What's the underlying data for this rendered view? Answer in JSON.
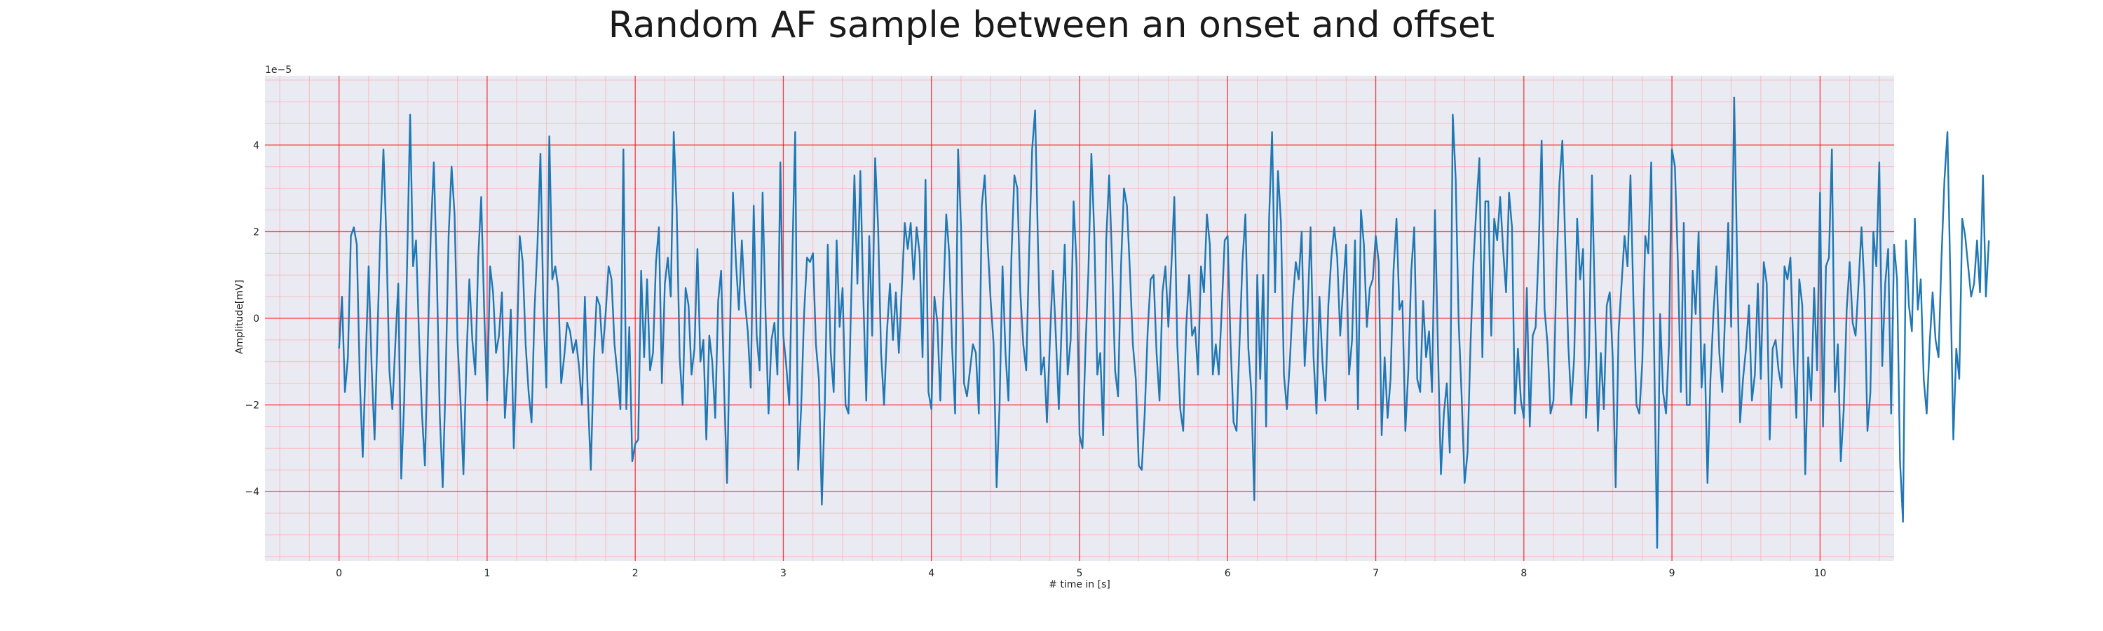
{
  "chart_data": {
    "type": "line",
    "title": "Random AF sample between an onset and offset",
    "xlabel": "# time in [s]",
    "ylabel": "Amplitude[mV]",
    "y_scale_label": "1e−5",
    "xlim": [
      -0.5,
      10.5
    ],
    "ylim": [
      -5.6,
      5.6
    ],
    "x_ticks": [
      0,
      1,
      2,
      3,
      4,
      5,
      6,
      7,
      8,
      9,
      10
    ],
    "x_tick_labels": [
      "0",
      "1",
      "2",
      "3",
      "4",
      "5",
      "6",
      "7",
      "8",
      "9",
      "10"
    ],
    "y_ticks": [
      -4,
      -2,
      0,
      2,
      4
    ],
    "y_tick_labels": [
      "−4",
      "−2",
      "0",
      "2",
      "4"
    ],
    "grid": true,
    "x_start": 0,
    "x_step": 0.02,
    "series": [
      {
        "values": [
          -0.7,
          0.5,
          -1.7,
          -0.9,
          1.9,
          2.1,
          1.7,
          -1.4,
          -3.2,
          -1.0,
          1.2,
          -1.1,
          -2.8,
          -0.3,
          2.1,
          3.9,
          1.8,
          -1.2,
          -2.1,
          -0.6,
          0.8,
          -3.7,
          -1.9,
          1.3,
          4.7,
          1.2,
          1.8,
          -0.4,
          -2.2,
          -3.4,
          -0.5,
          2.0,
          3.6,
          1.1,
          -2.2,
          -3.9,
          -1.4,
          1.9,
          3.5,
          2.4,
          -0.5,
          -1.9,
          -3.6,
          -1.0,
          0.9,
          -0.5,
          -1.3,
          1.4,
          2.8,
          0.2,
          -1.9,
          1.2,
          0.6,
          -0.8,
          -0.4,
          0.6,
          -2.3,
          -1.2,
          0.2,
          -3.0,
          -0.8,
          1.9,
          1.3,
          -0.6,
          -1.7,
          -2.4,
          0.2,
          1.7,
          3.8,
          0.2,
          -1.6,
          4.2,
          0.9,
          1.2,
          0.7,
          -1.5,
          -0.9,
          -0.1,
          -0.3,
          -0.8,
          -0.5,
          -1.1,
          -2.0,
          0.5,
          -1.8,
          -3.5,
          -1.0,
          0.5,
          0.3,
          -0.8,
          0.1,
          1.2,
          0.9,
          -0.6,
          -1.3,
          -2.1,
          3.9,
          -2.1,
          -0.2,
          -3.3,
          -2.9,
          -2.8,
          1.1,
          -0.9,
          0.9,
          -1.2,
          -0.8,
          1.3,
          2.1,
          -1.5,
          0.8,
          1.4,
          0.5,
          4.3,
          2.5,
          -0.9,
          -2.0,
          0.7,
          0.3,
          -1.3,
          -0.7,
          1.6,
          -1.0,
          -0.5,
          -2.8,
          -0.4,
          -1.0,
          -2.3,
          0.4,
          1.1,
          -1.6,
          -3.8,
          -0.3,
          2.9,
          1.3,
          0.2,
          1.8,
          0.4,
          -0.3,
          -1.6,
          2.6,
          -0.4,
          -1.2,
          2.9,
          0.1,
          -2.2,
          -0.5,
          -0.1,
          -1.3,
          3.6,
          -0.4,
          -1.1,
          -2.0,
          1.3,
          4.3,
          -3.5,
          -2.1,
          0.1,
          1.4,
          1.3,
          1.5,
          -0.6,
          -1.4,
          -4.3,
          -2.0,
          1.7,
          -0.8,
          -1.7,
          1.8,
          -0.2,
          0.7,
          -2.0,
          -2.2,
          0.7,
          3.3,
          0.8,
          3.4,
          0.5,
          -1.9,
          1.9,
          -0.4,
          3.7,
          2.1,
          -0.8,
          -2.0,
          -0.3,
          0.8,
          -0.5,
          0.6,
          -0.8,
          0.7,
          2.2,
          1.6,
          2.2,
          0.9,
          2.1,
          1.5,
          -0.9,
          3.2,
          -1.7,
          -2.1,
          0.5,
          -0.1,
          -1.9,
          0.4,
          2.4,
          1.5,
          -0.7,
          -2.2,
          3.9,
          2.1,
          -1.5,
          -1.8,
          -1.2,
          -0.6,
          -0.8,
          -2.2,
          2.6,
          3.3,
          1.7,
          0.4,
          -0.6,
          -3.9,
          -2.0,
          1.2,
          -0.8,
          -1.9,
          1.4,
          3.3,
          3.0,
          0.6,
          -0.6,
          -1.2,
          1.6,
          3.9,
          4.8,
          1.6,
          -1.3,
          -0.9,
          -2.4,
          -0.5,
          1.1,
          -0.4,
          -2.1,
          -0.1,
          1.7,
          -1.3,
          -0.5,
          2.7,
          1.2,
          -2.7,
          -3.0,
          -0.7,
          1.1,
          3.8,
          1.9,
          -1.3,
          -0.8,
          -2.7,
          1.8,
          3.3,
          1.3,
          -1.2,
          -1.8,
          1.2,
          3.0,
          2.6,
          1.1,
          -0.6,
          -1.4,
          -3.4,
          -3.5,
          -2.2,
          -0.3,
          0.9,
          1.0,
          -0.8,
          -1.9,
          0.6,
          1.2,
          -0.2,
          1.2,
          2.8,
          -0.6,
          -2.1,
          -2.6,
          -0.2,
          1.0,
          -0.4,
          -0.2,
          -1.3,
          1.2,
          0.6,
          2.4,
          1.7,
          -1.3,
          -0.6,
          -1.3,
          0.2,
          1.8,
          1.9,
          -0.6,
          -2.4,
          -2.6,
          -0.6,
          1.3,
          2.4,
          -0.7,
          -1.7,
          -4.2,
          1.0,
          -1.4,
          1.0,
          -2.5,
          2.3,
          4.3,
          0.6,
          3.4,
          2.2,
          -1.3,
          -2.1,
          -1.0,
          0.4,
          1.3,
          0.9,
          2.0,
          -1.1,
          0.2,
          2.1,
          -0.9,
          -2.2,
          0.5,
          -1.0,
          -1.9,
          0.3,
          1.4,
          2.1,
          1.4,
          -0.4,
          0.7,
          1.7,
          -1.3,
          -0.5,
          1.8,
          -2.1,
          2.5,
          1.7,
          -0.2,
          0.7,
          0.9,
          1.9,
          1.3,
          -2.7,
          -0.9,
          -2.3,
          -1.4,
          1.1,
          2.3,
          0.2,
          0.4,
          -2.6,
          -1.2,
          1.1,
          2.1,
          -1.4,
          -1.7,
          0.4,
          -0.9,
          -0.3,
          -1.7,
          2.5,
          -0.7,
          -3.6,
          -2.2,
          -1.5,
          -3.1,
          4.7,
          3.2,
          -0.1,
          -1.8,
          -3.8,
          -3.1,
          -0.6,
          1.3,
          2.6,
          3.7,
          -0.9,
          2.7,
          2.7,
          -0.4,
          2.3,
          1.8,
          2.8,
          1.6,
          0.6,
          2.9,
          2.1,
          -2.2,
          -0.7,
          -1.9,
          -2.3,
          0.7,
          -2.5,
          -0.4,
          -0.2,
          1.6,
          4.1,
          0.2,
          -0.6,
          -2.2,
          -1.9,
          1.1,
          3.1,
          4.1,
          1.7,
          -0.6,
          -2.0,
          -0.9,
          2.3,
          0.9,
          1.6,
          -2.3,
          -0.9,
          3.3,
          0.3,
          -2.6,
          -0.8,
          -2.1,
          0.3,
          0.6,
          -0.9,
          -3.9,
          -0.3,
          0.8,
          1.9,
          1.2,
          3.3,
          0.4,
          -2.0,
          -2.2,
          -1.0,
          1.9,
          1.5,
          3.6,
          -0.8,
          -5.3,
          0.1,
          -1.7,
          -2.2,
          -0.6,
          3.9,
          3.5,
          1.3,
          -1.7,
          2.2,
          -2.0,
          -2.0,
          1.1,
          0.1,
          2.0,
          -1.6,
          -0.6,
          -3.8,
          -1.4,
          0.1,
          1.2,
          -0.8,
          -1.7,
          0.2,
          2.2,
          -0.2,
          5.1,
          1.4,
          -2.4,
          -1.4,
          -0.7,
          0.3,
          -1.9,
          -1.3,
          0.8,
          -1.4,
          1.3,
          0.8,
          -2.8,
          -0.7,
          -0.5,
          -1.2,
          -1.6,
          1.2,
          0.9,
          1.4,
          -0.7,
          -2.3,
          0.9,
          0.3,
          -3.6,
          -0.9,
          -1.9,
          0.7,
          -1.2,
          2.9,
          -2.5,
          1.2,
          1.4,
          3.9,
          -1.7,
          -0.6,
          -3.3,
          -2.1,
          0.2,
          1.3,
          -0.1,
          -0.4,
          0.8,
          2.1,
          0.7,
          -2.6,
          -1.7,
          2.0,
          1.2,
          3.6,
          -1.1,
          0.8,
          1.6,
          -2.2,
          1.7,
          0.9,
          -3.3,
          -4.7,
          1.8,
          0.3,
          -0.3,
          2.3,
          0.2,
          0.9,
          -1.4,
          -2.2,
          -0.6,
          0.6,
          -0.5,
          -0.9,
          1.4,
          3.2,
          4.3,
          0.9,
          -2.8,
          -0.7,
          -1.4,
          2.3,
          1.9,
          1.2,
          0.5,
          0.8,
          1.8,
          0.6,
          3.3,
          0.5,
          1.8
        ]
      }
    ]
  },
  "colors": {
    "plot_background": "#eaeaf2",
    "major_grid": "#ff0000",
    "minor_grid": "#ffa0a0",
    "line": "#1f77b4"
  }
}
